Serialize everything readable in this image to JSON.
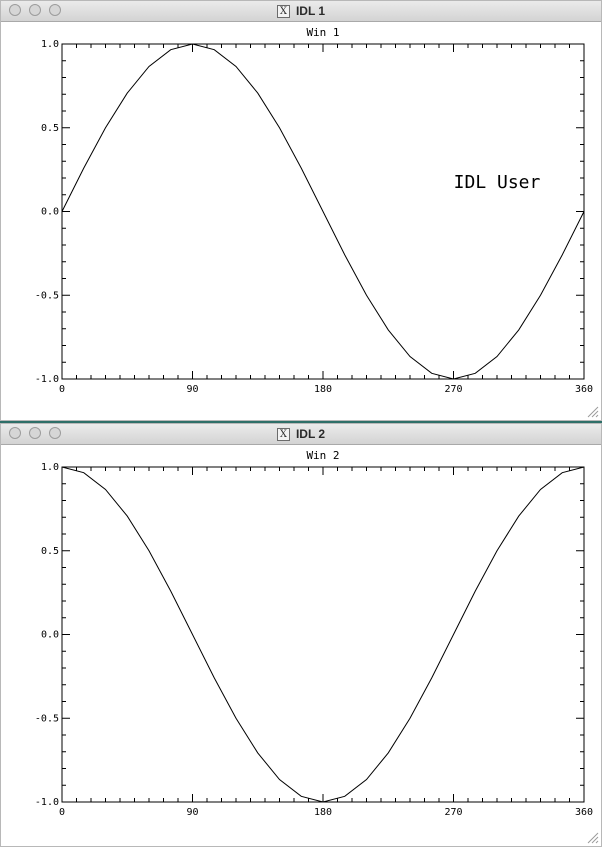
{
  "windows": [
    {
      "title": "IDL 1",
      "plot_title": "Win 1",
      "annotation": "IDL User",
      "chart_data": {
        "type": "line",
        "title": "Win 1",
        "xlabel": "",
        "ylabel": "",
        "xlim": [
          0,
          360
        ],
        "ylim": [
          -1.0,
          1.0
        ],
        "xticks": [
          "0",
          "90",
          "180",
          "270",
          "360"
        ],
        "yticks": [
          "-1.0",
          "-0.5",
          "0.0",
          "0.5",
          "1.0"
        ],
        "x": [
          0,
          15,
          30,
          45,
          60,
          75,
          90,
          105,
          120,
          135,
          150,
          165,
          180,
          195,
          210,
          225,
          240,
          255,
          270,
          285,
          300,
          315,
          330,
          345,
          360
        ],
        "series": [
          {
            "values": [
              0.0,
              0.259,
              0.5,
              0.707,
              0.866,
              0.966,
              1.0,
              0.966,
              0.866,
              0.707,
              0.5,
              0.259,
              0.0,
              -0.259,
              -0.5,
              -0.707,
              -0.866,
              -0.966,
              -1.0,
              -0.966,
              -0.866,
              -0.707,
              -0.5,
              -0.259,
              0.0
            ]
          }
        ],
        "annotations": [
          {
            "text": "IDL User",
            "x": 300,
            "y": 0.14
          }
        ],
        "grid": false,
        "color": "#000000"
      }
    },
    {
      "title": "IDL 2",
      "plot_title": "Win 2",
      "chart_data": {
        "type": "line",
        "title": "Win 2",
        "xlabel": "",
        "ylabel": "",
        "xlim": [
          0,
          360
        ],
        "ylim": [
          -1.0,
          1.0
        ],
        "xticks": [
          "0",
          "90",
          "180",
          "270",
          "360"
        ],
        "yticks": [
          "-1.0",
          "-0.5",
          "0.0",
          "0.5",
          "1.0"
        ],
        "x": [
          0,
          15,
          30,
          45,
          60,
          75,
          90,
          105,
          120,
          135,
          150,
          165,
          180,
          195,
          210,
          225,
          240,
          255,
          270,
          285,
          300,
          315,
          330,
          345,
          360
        ],
        "series": [
          {
            "values": [
              1.0,
              0.966,
              0.866,
              0.707,
              0.5,
              0.259,
              0.0,
              -0.259,
              -0.5,
              -0.707,
              -0.866,
              -0.966,
              -1.0,
              -0.966,
              -0.866,
              -0.707,
              -0.5,
              -0.259,
              0.0,
              0.259,
              0.5,
              0.707,
              0.866,
              0.966,
              1.0
            ]
          }
        ],
        "grid": false,
        "color": "#000000"
      }
    }
  ],
  "icons": {
    "window_icon": "x11-icon",
    "resize": "resize-grip-icon"
  }
}
